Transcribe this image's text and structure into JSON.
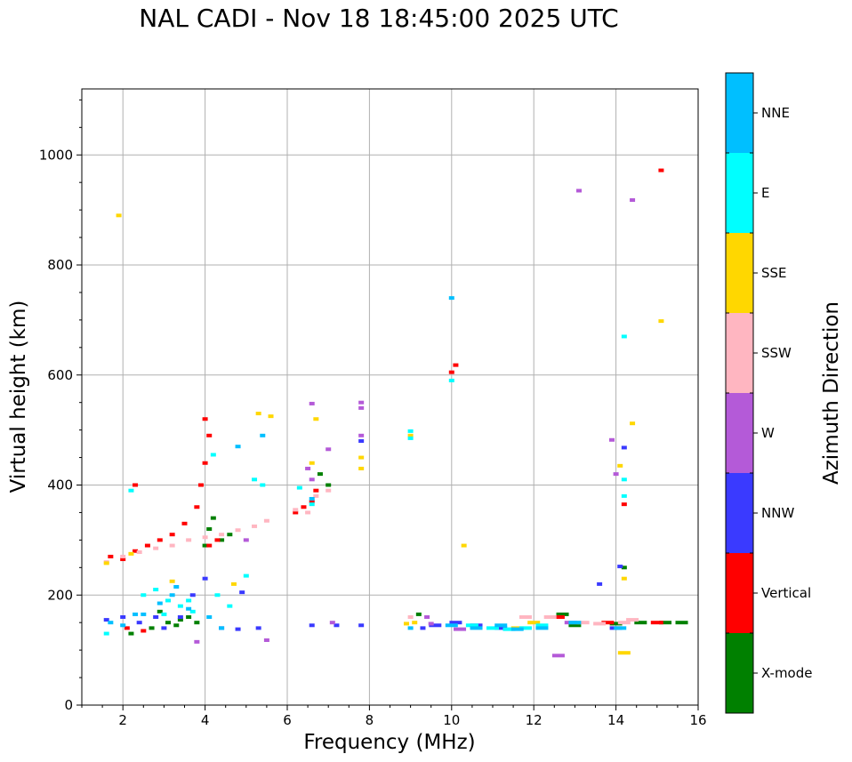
{
  "chart_data": {
    "type": "scatter",
    "title": "NAL CADI - Nov 18 18:45:00 2025 UTC",
    "xlabel": "Frequency (MHz)",
    "ylabel": "Virtual height (km)",
    "xlim": [
      1,
      16
    ],
    "ylim": [
      0,
      1120
    ],
    "xticks": [
      2,
      4,
      6,
      8,
      10,
      12,
      14,
      16
    ],
    "yticks": [
      0,
      200,
      400,
      600,
      800,
      1000
    ],
    "grid": true,
    "colorbar": {
      "label": "Azimuth Direction",
      "categories": [
        "X-mode",
        "Vertical",
        "NNW",
        "W",
        "SSW",
        "SSE",
        "E",
        "NNE"
      ],
      "colors": [
        "#008000",
        "#ff0000",
        "#3a3aff",
        "#b45ad8",
        "#ffb6c1",
        "#ffd700",
        "#00ffff",
        "#00bfff"
      ]
    },
    "series": [
      {
        "name": "X-mode",
        "points": [
          [
            2.2,
            130
          ],
          [
            2.7,
            140
          ],
          [
            3.1,
            150
          ],
          [
            3.4,
            155
          ],
          [
            3.6,
            160
          ],
          [
            3.8,
            150
          ],
          [
            4.0,
            290
          ],
          [
            4.2,
            340
          ],
          [
            4.4,
            300
          ],
          [
            4.6,
            310
          ],
          [
            6.8,
            420
          ],
          [
            7.0,
            400
          ],
          [
            9.2,
            165
          ],
          [
            12.7,
            165
          ],
          [
            13.0,
            145
          ],
          [
            14.0,
            148
          ],
          [
            14.2,
            250
          ],
          [
            14.6,
            150
          ],
          [
            15.2,
            150
          ],
          [
            15.6,
            150
          ],
          [
            2.9,
            170
          ],
          [
            3.3,
            145
          ],
          [
            4.1,
            320
          ]
        ]
      },
      {
        "name": "Vertical",
        "points": [
          [
            1.7,
            270
          ],
          [
            2.0,
            265
          ],
          [
            2.3,
            280
          ],
          [
            2.6,
            290
          ],
          [
            2.9,
            300
          ],
          [
            3.2,
            310
          ],
          [
            3.5,
            330
          ],
          [
            3.8,
            360
          ],
          [
            3.9,
            400
          ],
          [
            4.0,
            440
          ],
          [
            4.0,
            520
          ],
          [
            4.1,
            490
          ],
          [
            4.3,
            300
          ],
          [
            4.1,
            290
          ],
          [
            6.2,
            350
          ],
          [
            6.4,
            360
          ],
          [
            6.6,
            370
          ],
          [
            6.7,
            390
          ],
          [
            10.0,
            605
          ],
          [
            10.1,
            618
          ],
          [
            14.2,
            365
          ],
          [
            15.0,
            150
          ],
          [
            15.1,
            972
          ],
          [
            2.3,
            400
          ],
          [
            2.5,
            135
          ],
          [
            2.1,
            140
          ],
          [
            13.8,
            150
          ],
          [
            12.6,
            160
          ]
        ]
      },
      {
        "name": "NNW",
        "points": [
          [
            1.6,
            155
          ],
          [
            2.0,
            160
          ],
          [
            2.4,
            150
          ],
          [
            3.0,
            140
          ],
          [
            3.4,
            160
          ],
          [
            3.7,
            200
          ],
          [
            4.0,
            230
          ],
          [
            4.4,
            140
          ],
          [
            4.8,
            138
          ],
          [
            5.3,
            140
          ],
          [
            6.6,
            145
          ],
          [
            7.2,
            145
          ],
          [
            7.8,
            145
          ],
          [
            9.3,
            140
          ],
          [
            9.6,
            145
          ],
          [
            10.1,
            150
          ],
          [
            10.6,
            145
          ],
          [
            11.2,
            140
          ],
          [
            13.6,
            220
          ],
          [
            14.1,
            252
          ],
          [
            14.2,
            468
          ],
          [
            14.0,
            140
          ],
          [
            2.8,
            160
          ],
          [
            4.9,
            205
          ],
          [
            7.8,
            480
          ]
        ]
      },
      {
        "name": "W",
        "points": [
          [
            6.6,
            548
          ],
          [
            7.8,
            550
          ],
          [
            7.8,
            540
          ],
          [
            7.8,
            490
          ],
          [
            9.5,
            148
          ],
          [
            13.1,
            935
          ],
          [
            14.4,
            918
          ],
          [
            13.9,
            482
          ],
          [
            14.0,
            420
          ],
          [
            12.6,
            90
          ],
          [
            9.4,
            160
          ],
          [
            10.2,
            138
          ],
          [
            6.5,
            430
          ],
          [
            6.6,
            410
          ],
          [
            7.0,
            465
          ],
          [
            3.8,
            115
          ],
          [
            5.5,
            118
          ],
          [
            7.1,
            150
          ],
          [
            5.0,
            300
          ],
          [
            12.9,
            150
          ]
        ]
      },
      {
        "name": "SSW",
        "points": [
          [
            1.6,
            260
          ],
          [
            2.0,
            270
          ],
          [
            2.4,
            278
          ],
          [
            2.8,
            285
          ],
          [
            3.2,
            290
          ],
          [
            3.6,
            300
          ],
          [
            4.0,
            305
          ],
          [
            4.4,
            310
          ],
          [
            4.8,
            318
          ],
          [
            5.2,
            325
          ],
          [
            5.5,
            335
          ],
          [
            6.2,
            355
          ],
          [
            6.5,
            350
          ],
          [
            6.7,
            380
          ],
          [
            7.0,
            390
          ],
          [
            9.0,
            160
          ],
          [
            11.8,
            160
          ],
          [
            12.4,
            160
          ],
          [
            13.2,
            150
          ],
          [
            13.6,
            148
          ],
          [
            14.2,
            150
          ],
          [
            14.4,
            155
          ]
        ]
      },
      {
        "name": "SSE",
        "points": [
          [
            1.6,
            258
          ],
          [
            1.9,
            890
          ],
          [
            2.2,
            275
          ],
          [
            3.2,
            225
          ],
          [
            4.7,
            220
          ],
          [
            5.3,
            530
          ],
          [
            5.6,
            525
          ],
          [
            6.7,
            520
          ],
          [
            7.8,
            450
          ],
          [
            7.8,
            430
          ],
          [
            9.0,
            490
          ],
          [
            9.1,
            150
          ],
          [
            10.3,
            290
          ],
          [
            14.2,
            230
          ],
          [
            14.2,
            95
          ],
          [
            14.4,
            512
          ],
          [
            15.1,
            698
          ],
          [
            14.1,
            435
          ],
          [
            12.0,
            150
          ],
          [
            11.6,
            140
          ],
          [
            8.9,
            148
          ],
          [
            6.6,
            440
          ]
        ]
      },
      {
        "name": "E",
        "points": [
          [
            1.6,
            130
          ],
          [
            2.2,
            390
          ],
          [
            2.5,
            200
          ],
          [
            2.8,
            210
          ],
          [
            3.1,
            190
          ],
          [
            3.4,
            180
          ],
          [
            3.7,
            170
          ],
          [
            4.2,
            455
          ],
          [
            4.3,
            200
          ],
          [
            4.6,
            180
          ],
          [
            5.0,
            235
          ],
          [
            5.2,
            410
          ],
          [
            5.4,
            400
          ],
          [
            6.3,
            395
          ],
          [
            6.6,
            365
          ],
          [
            9.0,
            498
          ],
          [
            9.0,
            485
          ],
          [
            10.0,
            590
          ],
          [
            10.5,
            145
          ],
          [
            11.0,
            140
          ],
          [
            11.4,
            138
          ],
          [
            12.2,
            145
          ],
          [
            14.2,
            670
          ],
          [
            14.2,
            380
          ],
          [
            14.2,
            410
          ],
          [
            11.8,
            140
          ],
          [
            3.0,
            165
          ],
          [
            3.6,
            190
          ]
        ]
      },
      {
        "name": "NNE",
        "points": [
          [
            1.7,
            150
          ],
          [
            2.0,
            145
          ],
          [
            2.5,
            165
          ],
          [
            2.9,
            185
          ],
          [
            3.2,
            200
          ],
          [
            3.6,
            175
          ],
          [
            4.1,
            160
          ],
          [
            4.4,
            140
          ],
          [
            4.8,
            470
          ],
          [
            5.4,
            490
          ],
          [
            6.6,
            375
          ],
          [
            9.0,
            140
          ],
          [
            10.0,
            145
          ],
          [
            10.6,
            140
          ],
          [
            11.2,
            145
          ],
          [
            11.6,
            138
          ],
          [
            12.2,
            140
          ],
          [
            13.0,
            150
          ],
          [
            14.1,
            140
          ],
          [
            10.0,
            740
          ],
          [
            2.3,
            165
          ],
          [
            3.3,
            215
          ]
        ]
      }
    ]
  }
}
